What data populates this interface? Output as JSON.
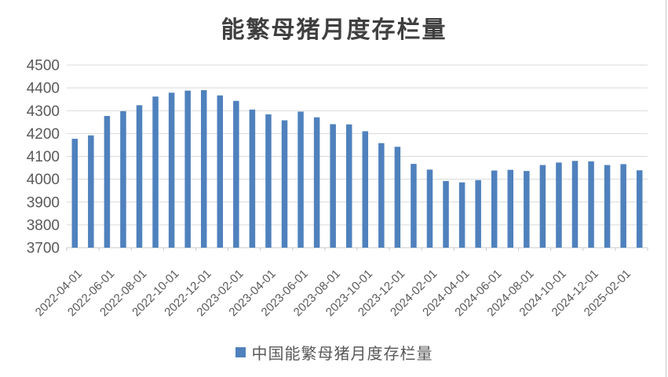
{
  "page": {
    "background": "#FFFFFF",
    "right_border_color": "#C9C9C9"
  },
  "chart_data": {
    "type": "bar",
    "title": "能繁母猪月度存栏量",
    "categories": [
      "2022-04-01",
      "2022-05-01",
      "2022-06-01",
      "2022-07-01",
      "2022-08-01",
      "2022-09-01",
      "2022-10-01",
      "2022-11-01",
      "2022-12-01",
      "2023-01-01",
      "2023-02-01",
      "2023-03-01",
      "2023-04-01",
      "2023-05-01",
      "2023-06-01",
      "2023-07-01",
      "2023-08-01",
      "2023-09-01",
      "2023-10-01",
      "2023-11-01",
      "2023-12-01",
      "2024-01-01",
      "2024-02-01",
      "2024-03-01",
      "2024-04-01",
      "2024-05-01",
      "2024-06-01",
      "2024-07-01",
      "2024-08-01",
      "2024-09-01",
      "2024-10-01",
      "2024-11-01",
      "2024-12-01",
      "2025-01-01",
      "2025-02-01",
      "2025-03-01"
    ],
    "values": [
      4177,
      4192,
      4277,
      4298,
      4324,
      4362,
      4379,
      4388,
      4390,
      4367,
      4343,
      4305,
      4284,
      4258,
      4296,
      4271,
      4241,
      4240,
      4210,
      4158,
      4142,
      4067,
      4042,
      3992,
      3986,
      3996,
      4038,
      4041,
      4036,
      4062,
      4073,
      4080,
      4078,
      4062,
      4066,
      4039
    ],
    "legend": [
      "中国能繁母猪月度存栏量"
    ],
    "legend_position": "bottom",
    "legend_marker": "square",
    "ylim": [
      3700,
      4500
    ],
    "y_ticks": [
      3700,
      3800,
      3900,
      4000,
      4100,
      4200,
      4300,
      4400,
      4500
    ],
    "x_tick_labels": [
      "2022-04-01",
      "2022-06-01",
      "2022-08-01",
      "2022-10-01",
      "2022-12-01",
      "2023-02-01",
      "2023-04-01",
      "2023-06-01",
      "2023-08-01",
      "2023-10-01",
      "2023-12-01",
      "2024-02-01",
      "2024-04-01",
      "2024-06-01",
      "2024-08-01",
      "2024-10-01",
      "2024-12-01",
      "2025-02-01"
    ],
    "x_tick_interval": 2,
    "x_label_rotation": -45,
    "grid": "horizontal",
    "colors": {
      "bar": "#4F81BD",
      "gridline": "#D9D9D9",
      "axis": "#C8C8C8",
      "tick_label": "#595959",
      "title": "#3F3F3F",
      "legend_text": "#595959"
    }
  }
}
